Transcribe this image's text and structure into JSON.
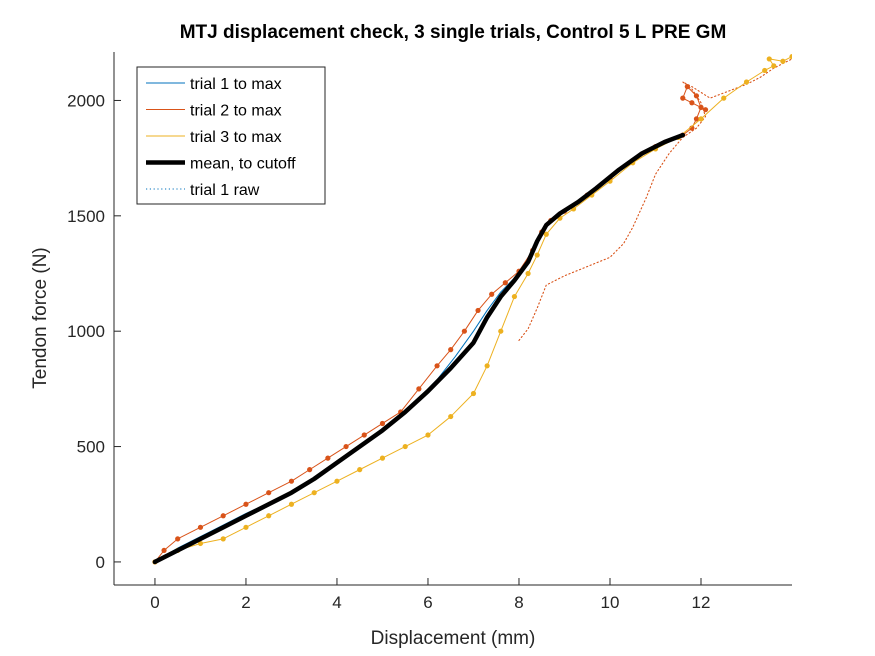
{
  "chart_data": {
    "type": "line",
    "title": "MTJ displacement check, 3 single trials, Control 5 L PRE GM",
    "xlabel": "Displacement (mm)",
    "ylabel": "Tendon force (N)",
    "xlim": [
      -0.9,
      14.0
    ],
    "ylim": [
      -100,
      2210
    ],
    "xticks": [
      0,
      2,
      4,
      6,
      8,
      10,
      12
    ],
    "yticks": [
      0,
      500,
      1000,
      1500,
      2000
    ],
    "legend_position": "top-left",
    "grid": false,
    "series": [
      {
        "name": "trial 1 to max",
        "color": "#0072BD",
        "style": "solid",
        "x": [
          0.0,
          0.5,
          1.0,
          1.5,
          2.0,
          2.5,
          3.0,
          3.4,
          3.8,
          4.2,
          4.6,
          5.0,
          5.4,
          5.8,
          6.2,
          6.6,
          7.0,
          7.3,
          7.6,
          7.9,
          8.2,
          8.4,
          8.6,
          8.8,
          9.1,
          9.5,
          9.9,
          10.3,
          10.8,
          11.2,
          11.6
        ],
        "y": [
          0,
          60,
          110,
          160,
          210,
          255,
          300,
          350,
          410,
          460,
          515,
          575,
          640,
          710,
          790,
          890,
          1000,
          1090,
          1170,
          1230,
          1300,
          1380,
          1450,
          1500,
          1540,
          1590,
          1660,
          1720,
          1780,
          1810,
          1850
        ]
      },
      {
        "name": "trial 2 to max",
        "color": "#D95319",
        "style": "solid",
        "markers": true,
        "x": [
          0.0,
          0.2,
          0.5,
          1.0,
          1.5,
          2.0,
          2.5,
          3.0,
          3.4,
          3.8,
          4.2,
          4.6,
          5.0,
          5.4,
          5.8,
          6.2,
          6.5,
          6.8,
          7.1,
          7.4,
          7.7,
          8.0,
          8.3,
          8.5,
          8.7,
          9.0,
          9.5,
          10.0,
          10.5,
          11.0,
          11.6,
          11.8,
          11.9,
          12.0,
          11.9,
          11.7,
          11.6,
          11.8,
          12.1
        ],
        "y": [
          0,
          50,
          100,
          150,
          200,
          250,
          300,
          350,
          400,
          450,
          500,
          550,
          600,
          650,
          750,
          850,
          920,
          1000,
          1090,
          1160,
          1210,
          1260,
          1350,
          1430,
          1480,
          1520,
          1590,
          1660,
          1740,
          1800,
          1850,
          1880,
          1920,
          1970,
          2020,
          2060,
          2010,
          1990,
          1960
        ]
      },
      {
        "name": "trial 3 to max",
        "color": "#EDB120",
        "style": "solid",
        "markers": true,
        "x": [
          0.0,
          0.5,
          1.0,
          1.5,
          2.0,
          2.5,
          3.0,
          3.5,
          4.0,
          4.5,
          5.0,
          5.5,
          6.0,
          6.5,
          7.0,
          7.3,
          7.6,
          7.9,
          8.2,
          8.4,
          8.6,
          8.9,
          9.2,
          9.6,
          10.0,
          10.5,
          11.0,
          11.5,
          12.0,
          12.5,
          13.0,
          13.4,
          13.6,
          13.5,
          13.8,
          14.0
        ],
        "y": [
          0,
          50,
          80,
          100,
          150,
          200,
          250,
          300,
          350,
          400,
          450,
          500,
          550,
          630,
          730,
          850,
          1000,
          1150,
          1250,
          1330,
          1420,
          1490,
          1530,
          1590,
          1650,
          1730,
          1790,
          1840,
          1920,
          2010,
          2080,
          2130,
          2150,
          2180,
          2170,
          2190
        ]
      },
      {
        "name": "mean, to cutoff",
        "color": "#000000",
        "style": "bold",
        "x": [
          0.0,
          0.5,
          1.0,
          1.5,
          2.0,
          2.5,
          3.0,
          3.5,
          4.0,
          4.5,
          5.0,
          5.5,
          6.0,
          6.5,
          7.0,
          7.3,
          7.6,
          7.9,
          8.2,
          8.4,
          8.6,
          8.9,
          9.3,
          9.7,
          10.2,
          10.7,
          11.2,
          11.6
        ],
        "y": [
          0,
          50,
          100,
          150,
          200,
          250,
          300,
          360,
          430,
          500,
          570,
          650,
          740,
          840,
          950,
          1060,
          1150,
          1220,
          1300,
          1390,
          1460,
          1510,
          1560,
          1620,
          1700,
          1770,
          1820,
          1850
        ]
      },
      {
        "name": "trial 1 raw",
        "color": "#0072BD",
        "style": "dotted",
        "x": [
          8.0,
          8.2,
          8.4,
          8.6,
          9.0,
          9.5,
          10.0,
          10.3,
          10.5,
          10.8,
          11.0,
          11.3,
          11.6,
          11.9,
          12.1,
          12.0,
          11.8,
          11.6,
          11.8,
          12.2,
          12.6,
          13.0,
          13.3,
          13.6,
          13.8,
          14.0
        ],
        "y": [
          960,
          1010,
          1100,
          1200,
          1240,
          1280,
          1320,
          1380,
          1450,
          1580,
          1680,
          1770,
          1840,
          1880,
          1930,
          1990,
          2050,
          2080,
          2060,
          2010,
          2040,
          2070,
          2100,
          2140,
          2160,
          2180
        ]
      }
    ]
  }
}
